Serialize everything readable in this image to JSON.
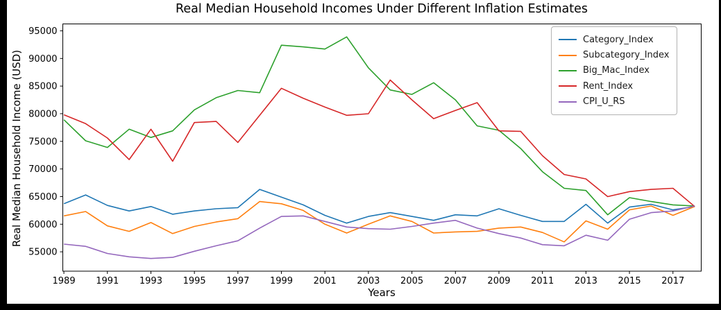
{
  "title": "Real Median Household Incomes Under Different Inflation Estimates",
  "xlabel": "Years",
  "ylabel": "Real Median Household Income (USD)",
  "chart_data": {
    "type": "line",
    "x": [
      1989,
      1990,
      1991,
      1992,
      1993,
      1994,
      1995,
      1996,
      1997,
      1998,
      1999,
      2000,
      2001,
      2002,
      2003,
      2004,
      2005,
      2006,
      2007,
      2008,
      2009,
      2010,
      2011,
      2012,
      2013,
      2014,
      2015,
      2016,
      2017,
      2018
    ],
    "series": [
      {
        "name": "Category_Index",
        "color": "#1f77b4",
        "values": [
          63700,
          65300,
          63400,
          62400,
          63200,
          61800,
          62400,
          62800,
          63000,
          66300,
          64900,
          63500,
          61600,
          60200,
          61400,
          62100,
          61400,
          60700,
          61700,
          61500,
          62800,
          61600,
          60500,
          60500,
          63600,
          60200,
          63100,
          63600,
          62600,
          63200
        ]
      },
      {
        "name": "Subcategory_Index",
        "color": "#ff7f0e",
        "values": [
          61500,
          62300,
          59700,
          58700,
          60300,
          58300,
          59600,
          60400,
          61000,
          64100,
          63700,
          62500,
          60000,
          58400,
          60000,
          61500,
          60500,
          58400,
          58600,
          58700,
          59300,
          59500,
          58500,
          56800,
          60600,
          59100,
          62600,
          63300,
          61600,
          63200
        ]
      },
      {
        "name": "Big_Mac_Index",
        "color": "#2ca02c",
        "values": [
          78900,
          75100,
          73900,
          77200,
          75700,
          76900,
          80700,
          82900,
          84200,
          83800,
          92400,
          92100,
          91700,
          93900,
          88300,
          84300,
          83500,
          85600,
          82500,
          77800,
          77000,
          73700,
          69500,
          66500,
          66100,
          61700,
          64800,
          64100,
          63500,
          63300
        ]
      },
      {
        "name": "Rent_Index",
        "color": "#d62728",
        "values": [
          79800,
          78200,
          75600,
          71700,
          77200,
          71400,
          78400,
          78600,
          74800,
          79700,
          84600,
          82800,
          81200,
          79700,
          80000,
          86100,
          82500,
          79100,
          80600,
          82000,
          76900,
          76800,
          72400,
          69000,
          68200,
          65000,
          65900,
          66300,
          66500,
          63200
        ]
      },
      {
        "name": "CPI_U_RS",
        "color": "#9467bd",
        "values": [
          56400,
          56000,
          54700,
          54100,
          53800,
          54000,
          55100,
          56100,
          57000,
          59300,
          61400,
          61500,
          60500,
          59500,
          59200,
          59100,
          59600,
          60200,
          60700,
          59300,
          58300,
          57500,
          56300,
          56100,
          58000,
          57100,
          60900,
          62100,
          62400,
          63300
        ]
      }
    ],
    "xticks": [
      1989,
      1991,
      1993,
      1995,
      1997,
      1999,
      2001,
      2003,
      2005,
      2007,
      2009,
      2011,
      2013,
      2015,
      2017
    ],
    "yticks": [
      55000,
      60000,
      65000,
      70000,
      75000,
      80000,
      85000,
      90000,
      95000
    ],
    "xlim": [
      1988.95,
      2018.3
    ],
    "ylim": [
      51500,
      96250
    ],
    "grid": false,
    "legend_position": "upper right",
    "line_width": 1.6,
    "axis_color": "#000000"
  }
}
